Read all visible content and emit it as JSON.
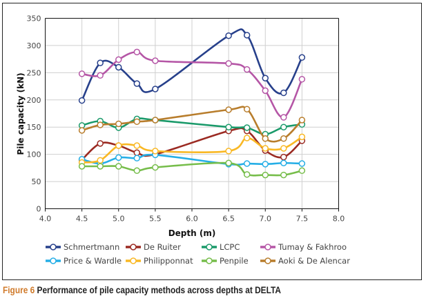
{
  "caption": {
    "label": "Figure 6",
    "text": " Performance of pile capacity methods across depths at DELTA",
    "label_color": "#d07a2a"
  },
  "chart_data": {
    "type": "line",
    "xlabel": "Depth (m)",
    "ylabel": "Pile capacity (kN)",
    "xlim": [
      4.0,
      8.0
    ],
    "ylim": [
      0,
      350
    ],
    "xticks": [
      "4.0",
      "4.5",
      "5.0",
      "5.5",
      "6.0",
      "6.5",
      "7.0",
      "7.5",
      "8.0"
    ],
    "yticks": [
      "0",
      "50",
      "100",
      "150",
      "200",
      "250",
      "300",
      "350"
    ],
    "grid": true,
    "legend_placement": "bottom",
    "x": [
      4.5,
      4.75,
      5.0,
      5.25,
      5.5,
      6.5,
      6.75,
      7.0,
      7.25,
      7.5
    ],
    "series": [
      {
        "name": "Schmertmann",
        "color": "#27408b",
        "values": [
          199,
          268,
          260,
          230,
          220,
          318,
          319,
          240,
          213,
          278
        ]
      },
      {
        "name": "De Ruiter",
        "color": "#9b2a22",
        "values": [
          90,
          120,
          116,
          103,
          100,
          143,
          143,
          107,
          95,
          125
        ]
      },
      {
        "name": "LCPC",
        "color": "#1a9a6a",
        "values": [
          153,
          161,
          149,
          165,
          163,
          150,
          149,
          137,
          150,
          155
        ]
      },
      {
        "name": "Tumay & Fakhroo",
        "color": "#b556a6",
        "values": [
          248,
          245,
          274,
          288,
          272,
          267,
          256,
          217,
          168,
          238
        ]
      },
      {
        "name": "Price & Wardle",
        "color": "#25aee6",
        "values": [
          91,
          83,
          94,
          93,
          99,
          82,
          83,
          82,
          84,
          83
        ]
      },
      {
        "name": "Philipponnat",
        "color": "#f9b824",
        "values": [
          85,
          89,
          116,
          116,
          106,
          106,
          130,
          111,
          111,
          132
        ]
      },
      {
        "name": "Penpile",
        "color": "#76bd4a",
        "values": [
          78,
          78,
          78,
          70,
          76,
          84,
          63,
          62,
          62,
          70
        ]
      },
      {
        "name": "Aoki & De Alencar",
        "color": "#b87d2c",
        "values": [
          144,
          154,
          156,
          160,
          163,
          182,
          183,
          129,
          129,
          163
        ]
      }
    ]
  }
}
